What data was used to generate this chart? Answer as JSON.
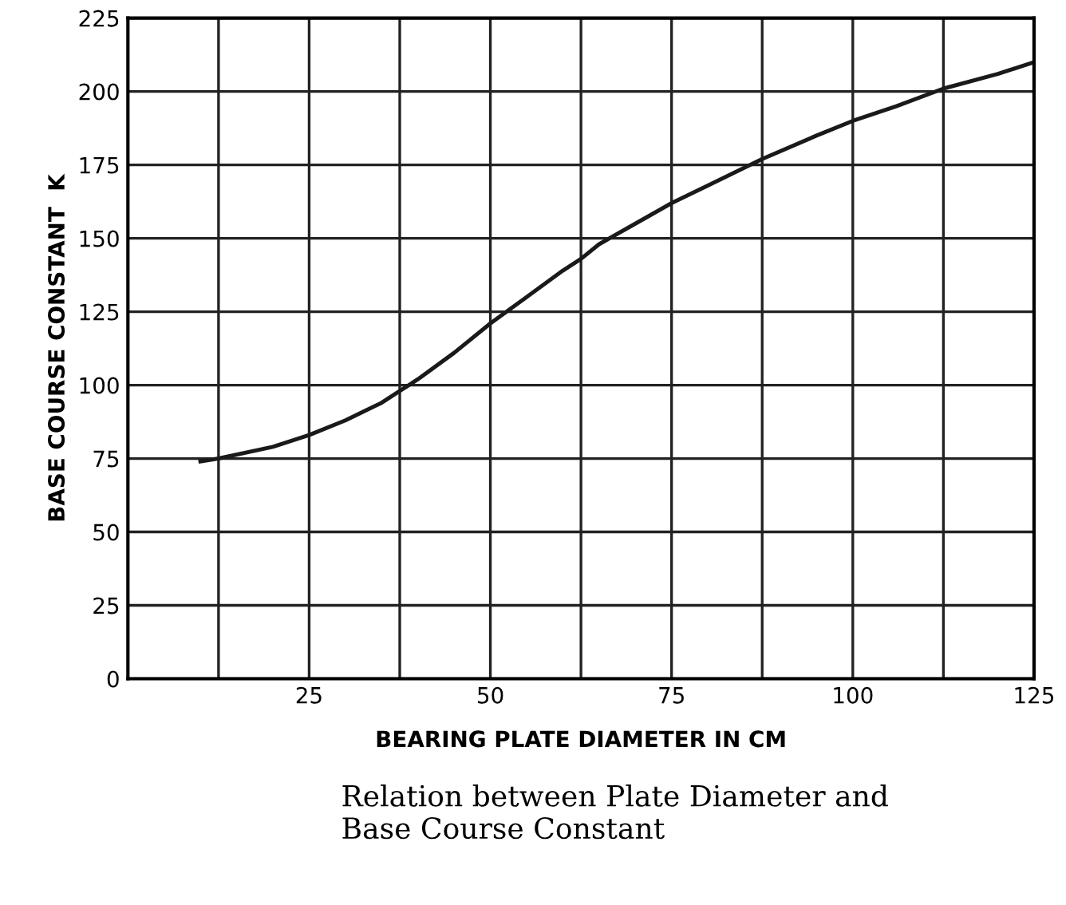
{
  "chart_data": {
    "type": "line",
    "xlabel": "BEARING PLATE DIAMETER IN CM",
    "ylabel": "BASE COURSE CONSTANT  K",
    "annotations": [
      "Relation between Plate Diameter and\nBase Course Constant"
    ],
    "series": [
      {
        "color": "#1a1a1a",
        "x": [
          10,
          12.5,
          20,
          25,
          30,
          35,
          37.5,
          40,
          45,
          50,
          55,
          60,
          62.5,
          65,
          70,
          75,
          80,
          87.5,
          95,
          100,
          106,
          112.5,
          120,
          125
        ],
        "values": [
          74,
          75,
          79,
          83,
          88,
          94,
          98,
          102,
          111,
          121,
          130,
          139,
          143,
          148,
          155,
          162,
          168,
          177,
          185,
          190,
          195,
          201,
          206,
          210
        ]
      }
    ],
    "xlim": [
      0,
      125
    ],
    "ylim": [
      0,
      225
    ],
    "xticks": [
      {
        "value": 0,
        "label": null
      },
      {
        "value": 12.5,
        "label": null
      },
      25,
      {
        "value": 37.5,
        "label": null
      },
      50,
      {
        "value": 62.5,
        "label": null
      },
      75,
      {
        "value": 87.5,
        "label": null
      },
      100,
      {
        "value": 112.5,
        "label": null
      },
      125
    ],
    "yticks": [
      0,
      25,
      50,
      75,
      100,
      125,
      150,
      175,
      200,
      225
    ],
    "grid": true,
    "marker": "none",
    "line_style": "solid"
  }
}
